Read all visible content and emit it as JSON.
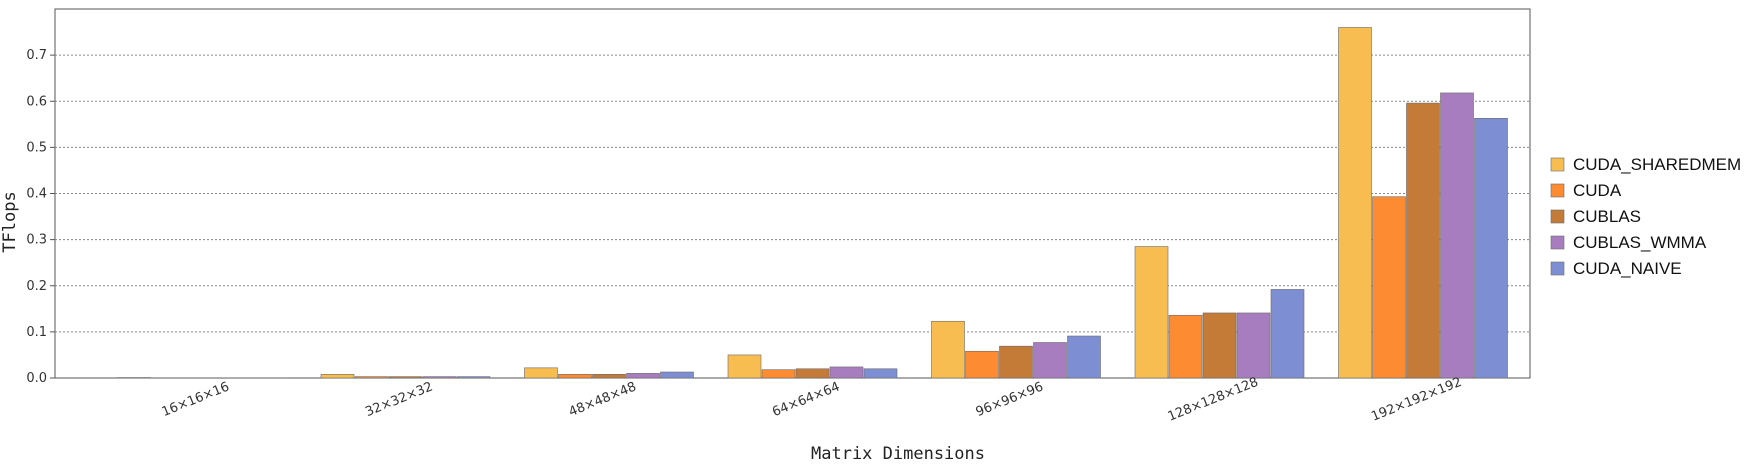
{
  "chart_data": {
    "type": "bar",
    "xlabel": "Matrix Dimensions",
    "ylabel": "TFlops",
    "ylim": [
      0,
      0.8
    ],
    "yticks": [
      "0.0",
      "0.1",
      "0.2",
      "0.3",
      "0.4",
      "0.5",
      "0.6",
      "0.7"
    ],
    "grid": true,
    "legend_position": "right",
    "categories": [
      "16×16×16",
      "32×32×32",
      "48×48×48",
      "64×64×64",
      "96×96×96",
      "128×128×128",
      "192×192×192"
    ],
    "series": [
      {
        "name": "CUDA_SHAREDMEM",
        "color": "#F8BD50",
        "values": [
          0.001,
          0.008,
          0.022,
          0.05,
          0.123,
          0.285,
          0.76
        ]
      },
      {
        "name": "CUDA",
        "color": "#FD8B31",
        "values": [
          0.0005,
          0.003,
          0.008,
          0.018,
          0.058,
          0.136,
          0.393
        ]
      },
      {
        "name": "CUBLAS",
        "color": "#C57B38",
        "values": [
          0.0005,
          0.003,
          0.008,
          0.02,
          0.069,
          0.141,
          0.596
        ]
      },
      {
        "name": "CUBLAS_WMMA",
        "color": "#A87DBF",
        "values": [
          0.0005,
          0.003,
          0.01,
          0.024,
          0.077,
          0.141,
          0.618
        ]
      },
      {
        "name": "CUDA_NAIVE",
        "color": "#7D8ED3",
        "values": [
          0.0005,
          0.003,
          0.013,
          0.02,
          0.091,
          0.192,
          0.563
        ]
      }
    ]
  }
}
